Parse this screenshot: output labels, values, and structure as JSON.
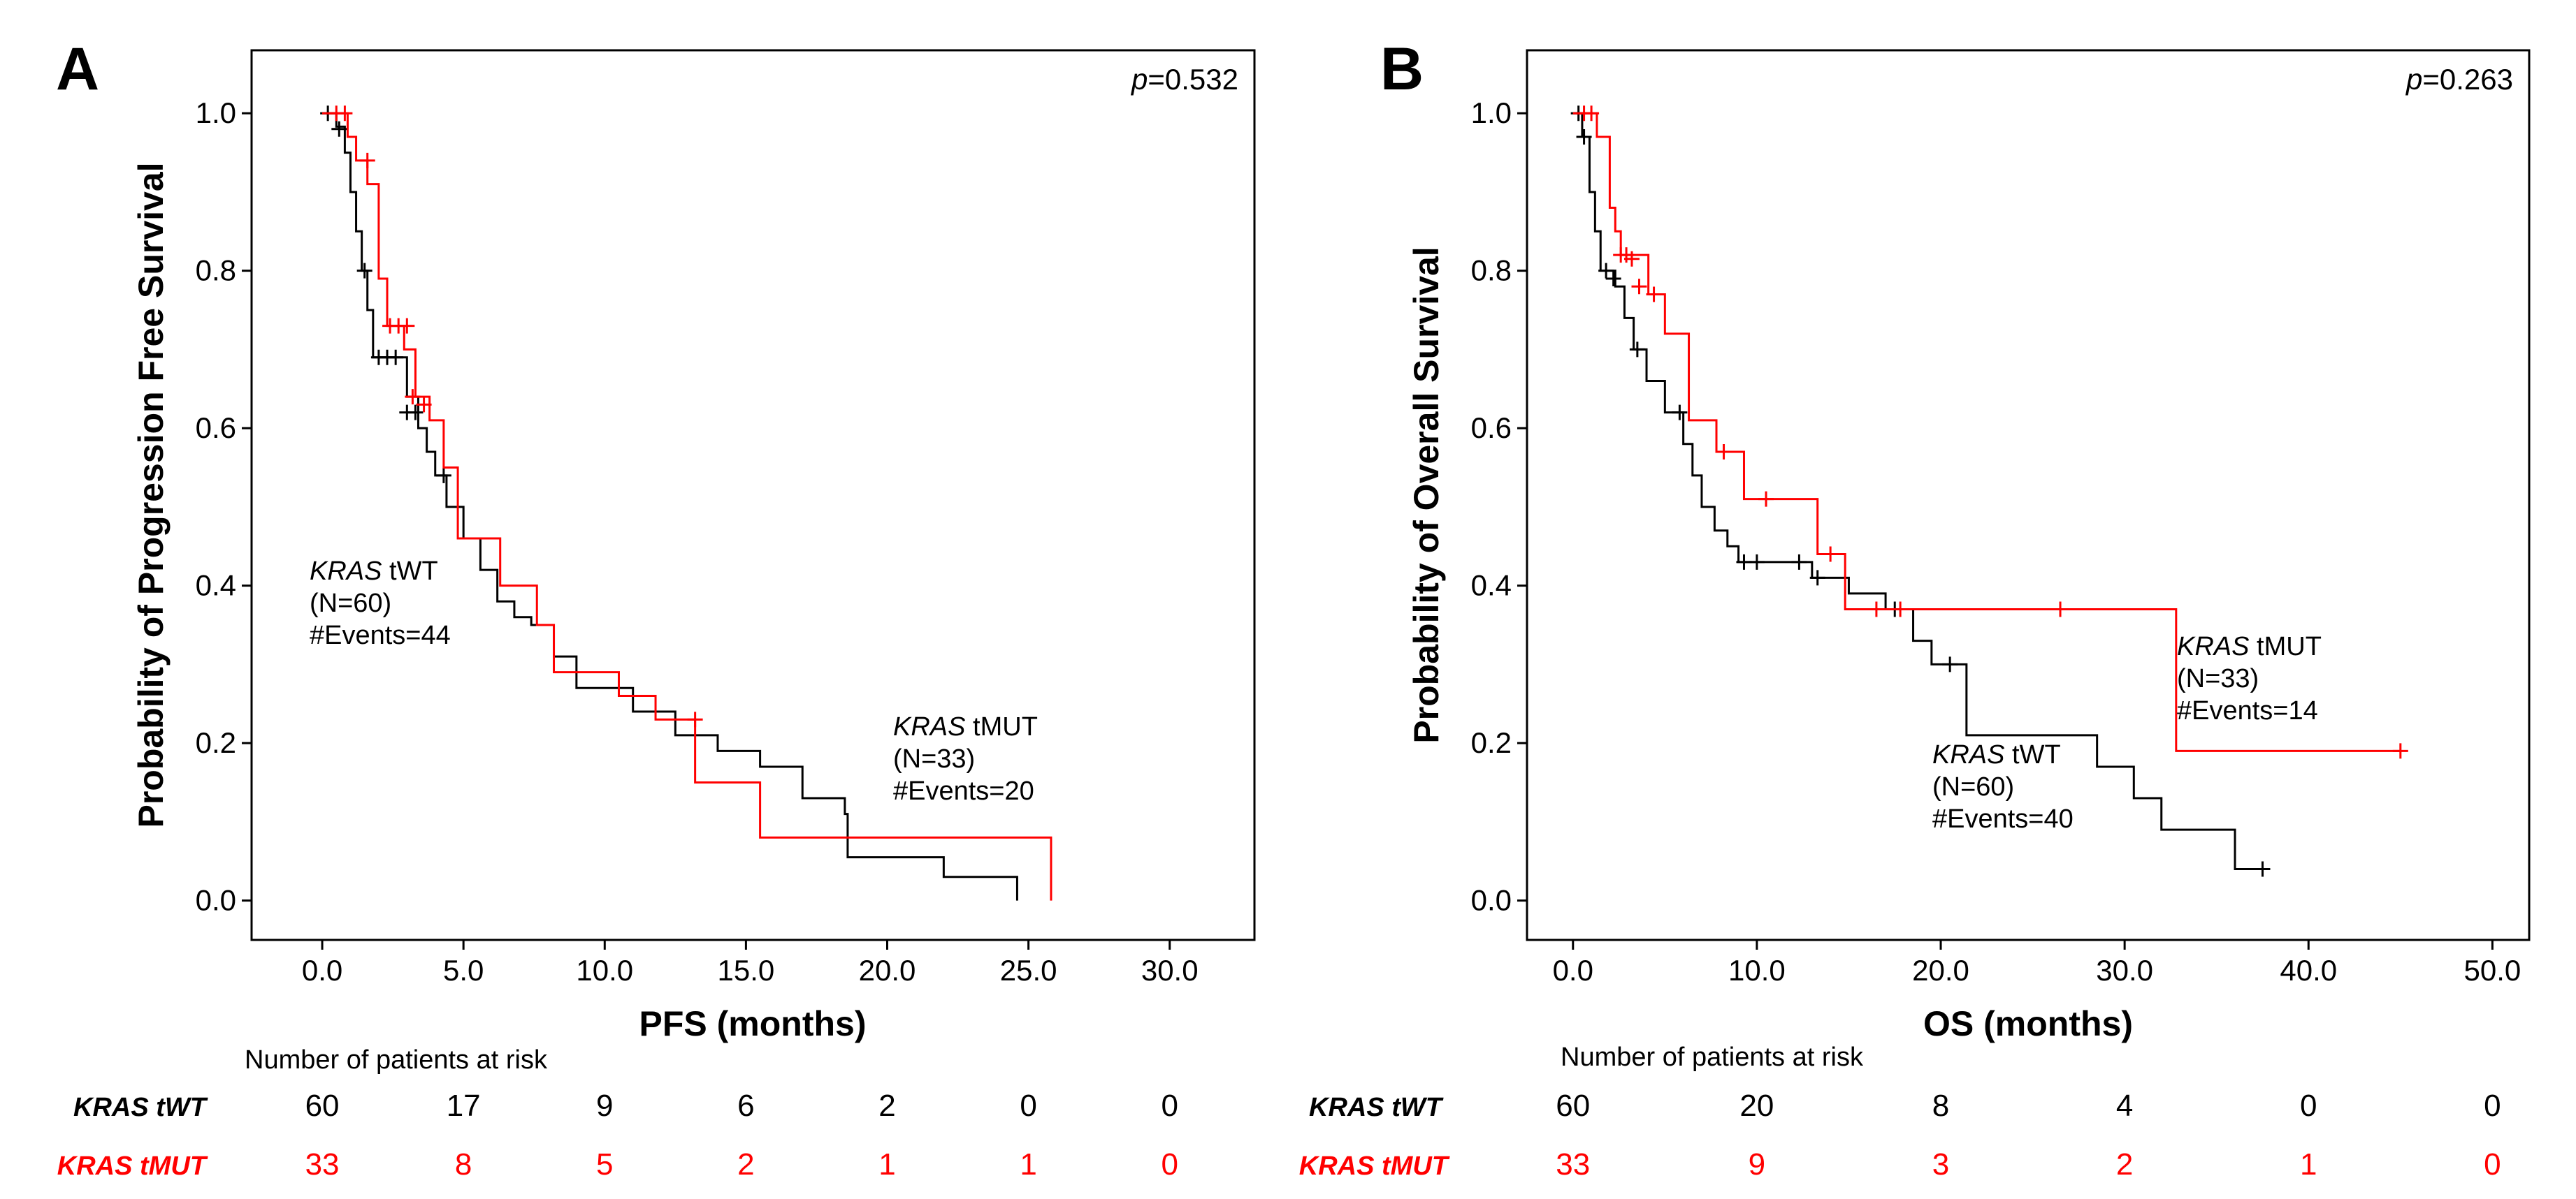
{
  "colors": {
    "wt": "#000000",
    "mut": "#ff0000"
  },
  "chart_data": [
    {
      "type": "line",
      "panel": "A",
      "p_prefix": "p",
      "p_value": "=0.532",
      "xlabel": "PFS (months)",
      "ylabel": "Probability of Progression Free Survival",
      "xlim": [
        -2.5,
        33
      ],
      "ylim": [
        -0.05,
        1.08
      ],
      "x_ticks": [
        0,
        5,
        10,
        15,
        20,
        25,
        30
      ],
      "x_tick_labels": [
        "0.0",
        "5.0",
        "10.0",
        "15.0",
        "20.0",
        "25.0",
        "30.0"
      ],
      "y_ticks": [
        0,
        0.2,
        0.4,
        0.6,
        0.8,
        1.0
      ],
      "y_tick_labels": [
        "0.0",
        "0.2",
        "0.4",
        "0.6",
        "0.8",
        "1.0"
      ],
      "series": [
        {
          "name": "KRAS tWT",
          "color": "#000000",
          "steps": [
            [
              0,
              1.0
            ],
            [
              0.5,
              0.983
            ],
            [
              0.8,
              0.95
            ],
            [
              1.0,
              0.9
            ],
            [
              1.2,
              0.85
            ],
            [
              1.4,
              0.8
            ],
            [
              1.6,
              0.75
            ],
            [
              1.8,
              0.69
            ],
            [
              3.0,
              0.64
            ],
            [
              3.4,
              0.6
            ],
            [
              3.7,
              0.57
            ],
            [
              4.0,
              0.54
            ],
            [
              4.4,
              0.5
            ],
            [
              5.0,
              0.46
            ],
            [
              5.6,
              0.42
            ],
            [
              6.2,
              0.38
            ],
            [
              6.8,
              0.36
            ],
            [
              7.4,
              0.35
            ],
            [
              8.2,
              0.31
            ],
            [
              9.0,
              0.27
            ],
            [
              11.0,
              0.24
            ],
            [
              12.5,
              0.21
            ],
            [
              14.0,
              0.19
            ],
            [
              15.5,
              0.17
            ],
            [
              17.0,
              0.13
            ],
            [
              18.5,
              0.11
            ],
            [
              18.6,
              0.055
            ],
            [
              22.0,
              0.03
            ],
            [
              24.6,
              0.0
            ]
          ],
          "end_x": 24.6,
          "censors": [
            [
              0.2,
              1.0
            ],
            [
              0.6,
              0.98
            ],
            [
              2.0,
              0.69
            ],
            [
              2.3,
              0.69
            ],
            [
              2.6,
              0.69
            ],
            [
              3.0,
              0.62
            ],
            [
              3.3,
              0.62
            ],
            [
              4.3,
              0.54
            ],
            [
              1.5,
              0.8
            ]
          ],
          "annotation": {
            "italic": "KRAS",
            "rest": " tWT",
            "n": "(N=60)",
            "events": "#Events=44"
          }
        },
        {
          "name": "KRAS tMUT",
          "color": "#ff0000",
          "steps": [
            [
              0,
              1.0
            ],
            [
              0.9,
              0.97
            ],
            [
              1.2,
              0.94
            ],
            [
              1.6,
              0.91
            ],
            [
              2.0,
              0.79
            ],
            [
              2.3,
              0.73
            ],
            [
              2.9,
              0.7
            ],
            [
              3.3,
              0.64
            ],
            [
              3.8,
              0.61
            ],
            [
              4.3,
              0.55
            ],
            [
              4.8,
              0.46
            ],
            [
              6.3,
              0.4
            ],
            [
              7.6,
              0.35
            ],
            [
              8.2,
              0.29
            ],
            [
              10.5,
              0.26
            ],
            [
              11.8,
              0.23
            ],
            [
              13.2,
              0.15
            ],
            [
              15.5,
              0.08
            ],
            [
              25.8,
              0.0
            ]
          ],
          "end_x": 25.8,
          "censors": [
            [
              0.5,
              1.0
            ],
            [
              0.8,
              1.0
            ],
            [
              1.6,
              0.94
            ],
            [
              2.4,
              0.73
            ],
            [
              2.7,
              0.73
            ],
            [
              3.0,
              0.73
            ],
            [
              3.2,
              0.64
            ],
            [
              3.6,
              0.63
            ],
            [
              13.2,
              0.23
            ]
          ],
          "annotation": {
            "italic": "KRAS",
            "rest": " tMUT",
            "n": "(N=33)",
            "events": "#Events=20"
          }
        }
      ],
      "risk_table": {
        "header": "Number of patients at risk",
        "rows": [
          {
            "label": "KRAS tWT",
            "values": [
              "60",
              "17",
              "9",
              "6",
              "2",
              "0",
              "0"
            ]
          },
          {
            "label": "KRAS tMUT",
            "values": [
              "33",
              "8",
              "5",
              "2",
              "1",
              "1",
              "0"
            ]
          }
        ]
      }
    },
    {
      "type": "line",
      "panel": "B",
      "p_prefix": "p",
      "p_value": "=0.263",
      "xlabel": "OS (months)",
      "ylabel": "Probability of Overall Survival",
      "xlim": [
        -2.5,
        52
      ],
      "ylim": [
        -0.05,
        1.08
      ],
      "x_ticks": [
        0,
        10,
        20,
        30,
        40,
        50
      ],
      "x_tick_labels": [
        "0.0",
        "10.0",
        "20.0",
        "30.0",
        "40.0",
        "50.0"
      ],
      "y_ticks": [
        0,
        0.2,
        0.4,
        0.6,
        0.8,
        1.0
      ],
      "y_tick_labels": [
        "0.0",
        "0.2",
        "0.4",
        "0.6",
        "0.8",
        "1.0"
      ],
      "series": [
        {
          "name": "KRAS tWT",
          "color": "#000000",
          "steps": [
            [
              0,
              1.0
            ],
            [
              0.5,
              0.97
            ],
            [
              0.9,
              0.9
            ],
            [
              1.2,
              0.85
            ],
            [
              1.5,
              0.8
            ],
            [
              2.3,
              0.78
            ],
            [
              2.8,
              0.74
            ],
            [
              3.3,
              0.7
            ],
            [
              4.0,
              0.66
            ],
            [
              5.0,
              0.62
            ],
            [
              6.0,
              0.58
            ],
            [
              6.5,
              0.54
            ],
            [
              7.0,
              0.5
            ],
            [
              7.7,
              0.47
            ],
            [
              8.4,
              0.45
            ],
            [
              9.0,
              0.43
            ],
            [
              13.0,
              0.41
            ],
            [
              15.0,
              0.39
            ],
            [
              17.0,
              0.37
            ],
            [
              18.5,
              0.33
            ],
            [
              19.5,
              0.3
            ],
            [
              21.4,
              0.21
            ],
            [
              28.5,
              0.17
            ],
            [
              30.5,
              0.13
            ],
            [
              32.0,
              0.09
            ],
            [
              36.0,
              0.04
            ],
            [
              37.5,
              0.04
            ]
          ],
          "end_x": 37.5,
          "censors": [
            [
              0.3,
              1.0
            ],
            [
              0.6,
              0.97
            ],
            [
              1.8,
              0.8
            ],
            [
              2.2,
              0.79
            ],
            [
              3.5,
              0.7
            ],
            [
              5.8,
              0.62
            ],
            [
              9.3,
              0.43
            ],
            [
              10.0,
              0.43
            ],
            [
              12.3,
              0.43
            ],
            [
              13.3,
              0.41
            ],
            [
              17.5,
              0.37
            ],
            [
              20.5,
              0.3
            ],
            [
              37.5,
              0.04
            ]
          ],
          "annotation": {
            "italic": "KRAS",
            "rest": " tWT",
            "n": "(N=60)",
            "events": "#Events=40"
          }
        },
        {
          "name": "KRAS tMUT",
          "color": "#ff0000",
          "steps": [
            [
              0,
              1.0
            ],
            [
              1.3,
              0.97
            ],
            [
              2.0,
              0.88
            ],
            [
              2.3,
              0.85
            ],
            [
              2.6,
              0.82
            ],
            [
              4.1,
              0.77
            ],
            [
              5.0,
              0.72
            ],
            [
              6.3,
              0.61
            ],
            [
              7.8,
              0.57
            ],
            [
              9.3,
              0.51
            ],
            [
              11.8,
              0.51
            ],
            [
              13.3,
              0.44
            ],
            [
              14.8,
              0.37
            ],
            [
              32.8,
              0.19
            ],
            [
              45.0,
              0.19
            ]
          ],
          "end_x": 45.0,
          "censors": [
            [
              0.6,
              1.0
            ],
            [
              1.0,
              1.0
            ],
            [
              2.6,
              0.82
            ],
            [
              2.9,
              0.82
            ],
            [
              3.2,
              0.815
            ],
            [
              3.6,
              0.78
            ],
            [
              4.4,
              0.77
            ],
            [
              8.2,
              0.57
            ],
            [
              10.5,
              0.51
            ],
            [
              14.0,
              0.44
            ],
            [
              16.5,
              0.37
            ],
            [
              17.8,
              0.37
            ],
            [
              26.5,
              0.37
            ],
            [
              45.0,
              0.19
            ]
          ],
          "annotation": {
            "italic": "KRAS",
            "rest": " tMUT",
            "n": "(N=33)",
            "events": "#Events=14"
          }
        }
      ],
      "risk_table": {
        "header": "Number of patients at risk",
        "rows": [
          {
            "label": "KRAS tWT",
            "values": [
              "60",
              "20",
              "8",
              "4",
              "0",
              "0"
            ]
          },
          {
            "label": "KRAS tMUT",
            "values": [
              "33",
              "9",
              "3",
              "2",
              "1",
              "0"
            ]
          }
        ]
      }
    }
  ]
}
